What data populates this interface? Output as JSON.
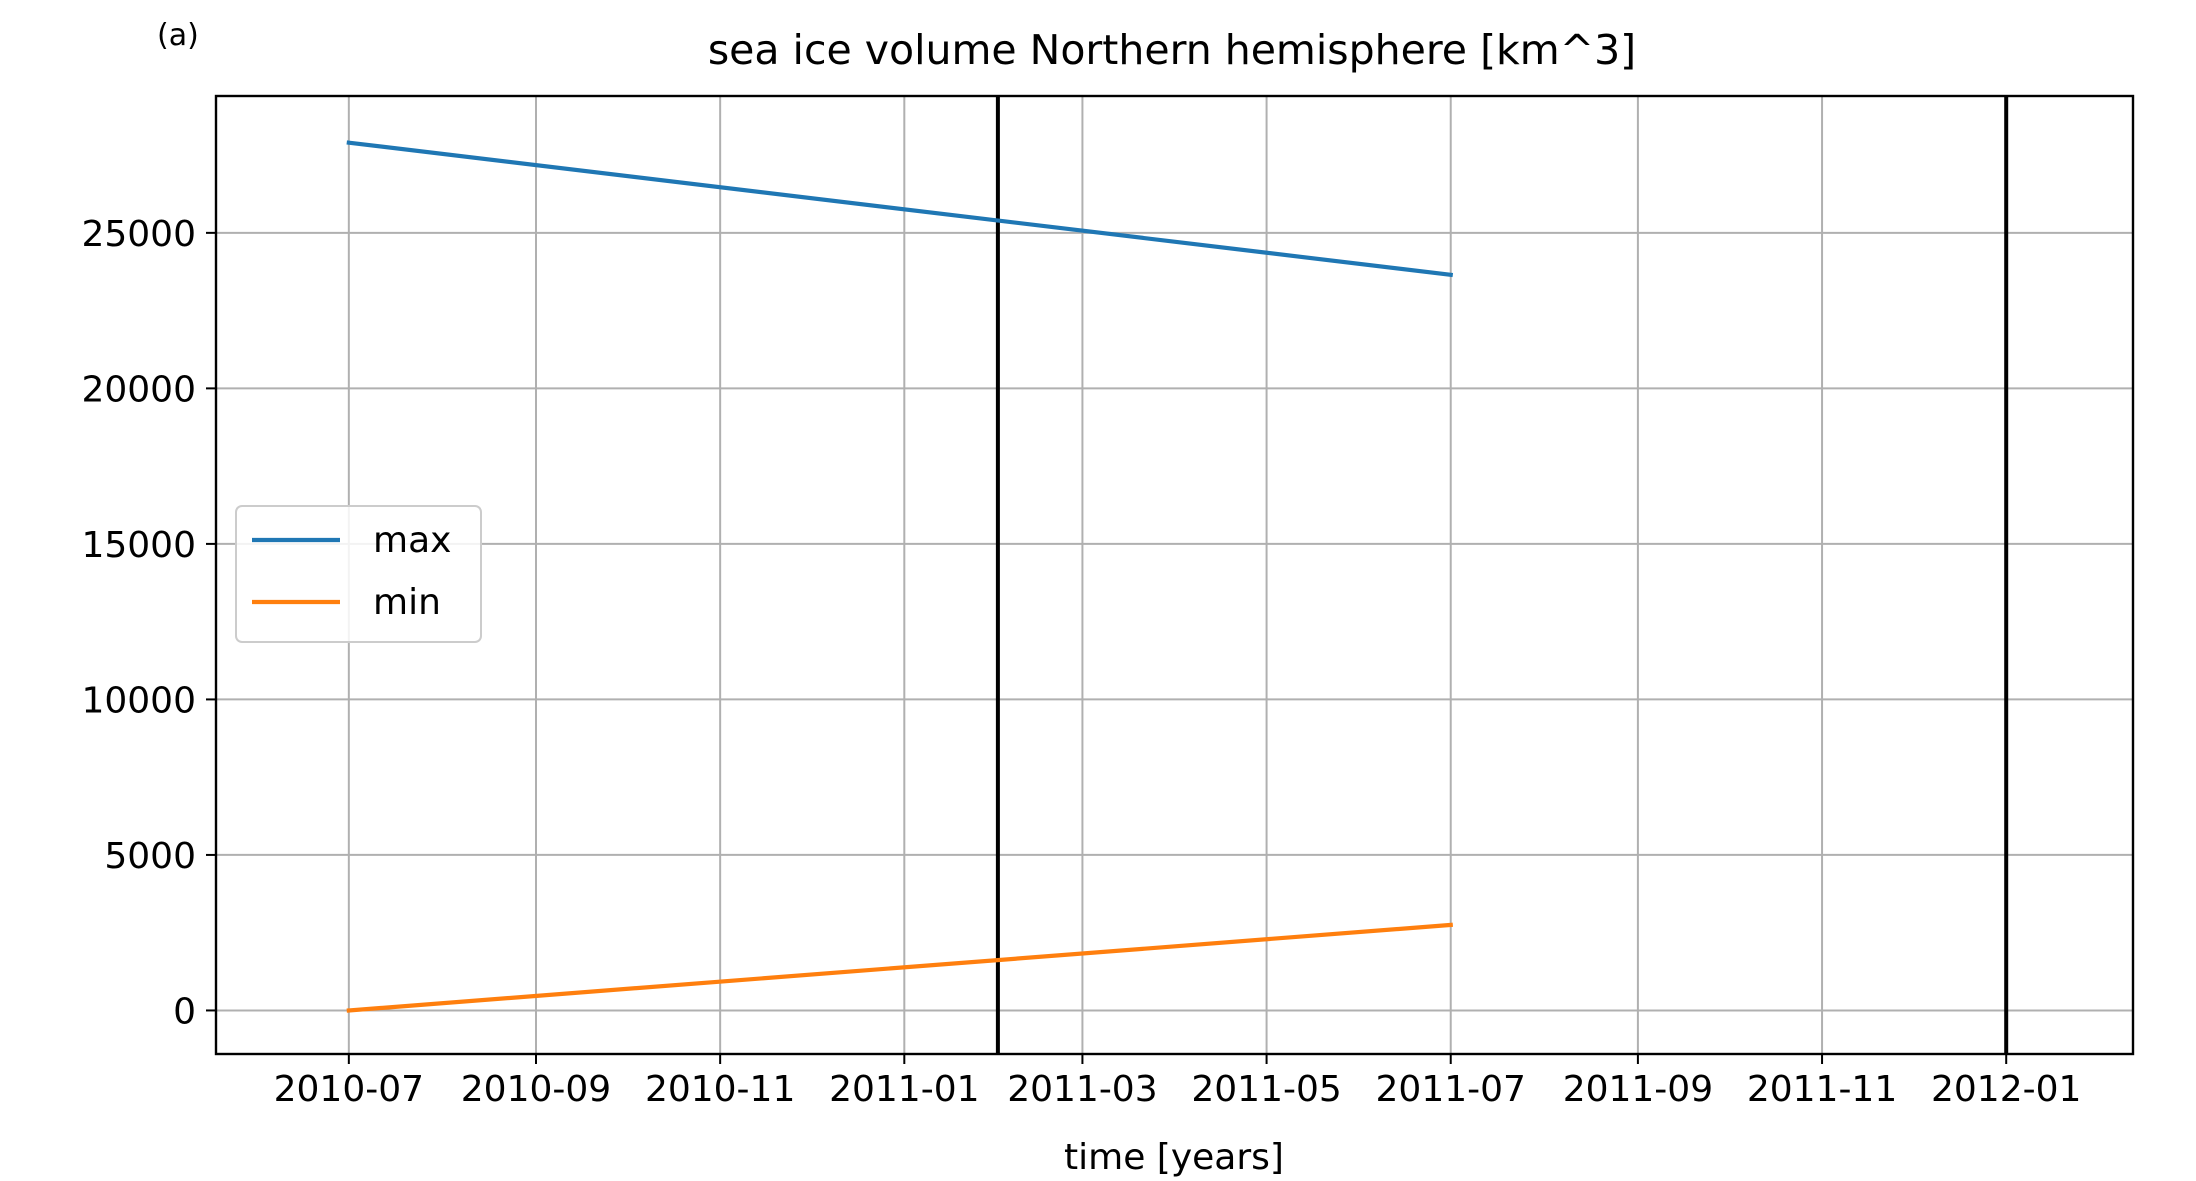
{
  "panel_label": "(a)",
  "chart_data": {
    "type": "line",
    "title": "sea ice volume Northern hemisphere [km^3]",
    "xlabel": "time [years]",
    "ylabel": "",
    "x_ticks": [
      "2010-07-01",
      "2010-09-01",
      "2010-11-01",
      "2011-01-01",
      "2011-03-01",
      "2011-05-01",
      "2011-07-01",
      "2011-09-01",
      "2011-11-01",
      "2012-01-01"
    ],
    "x_tick_labels": [
      "2010-07",
      "2010-09",
      "2010-11",
      "2011-01",
      "2011-03",
      "2011-05",
      "2011-07",
      "2011-09",
      "2011-11",
      "2012-01"
    ],
    "xlim": [
      "2010-05-18",
      "2012-02-12"
    ],
    "y_ticks": [
      0,
      5000,
      10000,
      15000,
      20000,
      25000
    ],
    "y_tick_labels": [
      "0",
      "5000",
      "10000",
      "15000",
      "20000",
      "25000"
    ],
    "ylim": [
      -1400,
      29400
    ],
    "grid": true,
    "legend_position": "center-left",
    "series": [
      {
        "name": "max",
        "color": "#1f77b4",
        "x": [
          "2010-07-01",
          "2011-07-01"
        ],
        "y": [
          27900,
          23650
        ]
      },
      {
        "name": "min",
        "color": "#ff7f0e",
        "x": [
          "2010-07-01",
          "2011-07-01"
        ],
        "y": [
          0,
          2750
        ]
      }
    ],
    "vertical_lines": [
      {
        "x": "2011-02-01",
        "color": "#000000"
      },
      {
        "x": "2012-01-01",
        "color": "#000000"
      }
    ]
  }
}
